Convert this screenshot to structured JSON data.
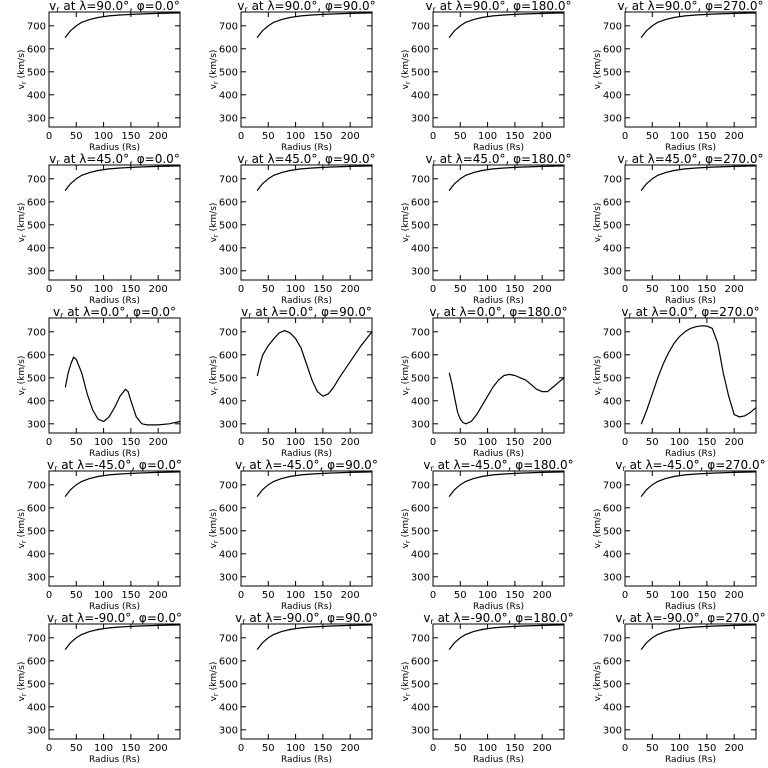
{
  "figure": {
    "xlabel": "Radius (Rs)",
    "ylabel": "v_r (km/s)",
    "ylabel_main": "v",
    "ylabel_sub": "r",
    "ylabel_rest": " (km/s)",
    "title_prefix": "v",
    "title_sub": "r",
    "title_at": " at λ=",
    "title_phi": "°, φ=",
    "title_deg": "°",
    "xticks": [
      "0",
      "50",
      "100",
      "150",
      "200"
    ],
    "yticks": [
      "300",
      "400",
      "500",
      "600",
      "700"
    ],
    "line_color": "#000000"
  },
  "chart_data": [
    {
      "type": "line",
      "title": "v_r at λ=90.0°, φ=0.0°",
      "lambda": "90.0",
      "phi": "0.0",
      "xlabel": "Radius (Rs)",
      "ylabel": "v_r (km/s)",
      "xlim": [
        0,
        240
      ],
      "ylim": [
        260,
        760
      ],
      "x": [
        30,
        40,
        50,
        60,
        75,
        90,
        110,
        130,
        160,
        200,
        240
      ],
      "y": [
        650,
        680,
        700,
        715,
        728,
        736,
        743,
        747,
        751,
        754,
        756
      ]
    },
    {
      "type": "line",
      "title": "v_r at λ=90.0°, φ=90.0°",
      "lambda": "90.0",
      "phi": "90.0",
      "xlabel": "Radius (Rs)",
      "ylabel": "v_r (km/s)",
      "xlim": [
        0,
        240
      ],
      "ylim": [
        260,
        760
      ],
      "x": [
        30,
        40,
        50,
        60,
        75,
        90,
        110,
        130,
        160,
        200,
        240
      ],
      "y": [
        650,
        680,
        700,
        715,
        728,
        736,
        743,
        747,
        751,
        754,
        756
      ]
    },
    {
      "type": "line",
      "title": "v_r at λ=90.0°, φ=180.0°",
      "lambda": "90.0",
      "phi": "180.0",
      "xlabel": "Radius (Rs)",
      "ylabel": "v_r (km/s)",
      "xlim": [
        0,
        240
      ],
      "ylim": [
        260,
        760
      ],
      "x": [
        30,
        40,
        50,
        60,
        75,
        90,
        110,
        130,
        160,
        200,
        240
      ],
      "y": [
        650,
        680,
        700,
        715,
        728,
        736,
        743,
        747,
        751,
        754,
        756
      ]
    },
    {
      "type": "line",
      "title": "v_r at λ=90.0°, φ=270.0°",
      "lambda": "90.0",
      "phi": "270.0",
      "xlabel": "Radius (Rs)",
      "ylabel": "v_r (km/s)",
      "xlim": [
        0,
        240
      ],
      "ylim": [
        260,
        760
      ],
      "x": [
        30,
        40,
        50,
        60,
        75,
        90,
        110,
        130,
        160,
        200,
        240
      ],
      "y": [
        650,
        680,
        700,
        715,
        728,
        736,
        743,
        747,
        751,
        754,
        756
      ]
    },
    {
      "type": "line",
      "title": "v_r at λ=45.0°, φ=0.0°",
      "lambda": "45.0",
      "phi": "0.0",
      "xlabel": "Radius (Rs)",
      "ylabel": "v_r (km/s)",
      "xlim": [
        0,
        240
      ],
      "ylim": [
        260,
        760
      ],
      "x": [
        30,
        40,
        50,
        60,
        75,
        90,
        110,
        130,
        160,
        200,
        240
      ],
      "y": [
        650,
        680,
        700,
        715,
        728,
        736,
        743,
        747,
        751,
        754,
        756
      ]
    },
    {
      "type": "line",
      "title": "v_r at λ=45.0°, φ=90.0°",
      "lambda": "45.0",
      "phi": "90.0",
      "xlabel": "Radius (Rs)",
      "ylabel": "v_r (km/s)",
      "xlim": [
        0,
        240
      ],
      "ylim": [
        260,
        760
      ],
      "x": [
        30,
        40,
        50,
        60,
        75,
        90,
        110,
        130,
        160,
        200,
        240
      ],
      "y": [
        650,
        680,
        700,
        715,
        728,
        736,
        743,
        747,
        751,
        754,
        756
      ]
    },
    {
      "type": "line",
      "title": "v_r at λ=45.0°, φ=180.0°",
      "lambda": "45.0",
      "phi": "180.0",
      "xlabel": "Radius (Rs)",
      "ylabel": "v_r (km/s)",
      "xlim": [
        0,
        240
      ],
      "ylim": [
        260,
        760
      ],
      "x": [
        30,
        40,
        50,
        60,
        75,
        90,
        110,
        130,
        160,
        200,
        240
      ],
      "y": [
        650,
        680,
        700,
        715,
        728,
        736,
        743,
        747,
        751,
        754,
        756
      ]
    },
    {
      "type": "line",
      "title": "v_r at λ=45.0°, φ=270.0°",
      "lambda": "45.0",
      "phi": "270.0",
      "xlabel": "Radius (Rs)",
      "ylabel": "v_r (km/s)",
      "xlim": [
        0,
        240
      ],
      "ylim": [
        260,
        760
      ],
      "x": [
        30,
        40,
        50,
        60,
        75,
        90,
        110,
        130,
        160,
        200,
        240
      ],
      "y": [
        650,
        680,
        700,
        715,
        728,
        736,
        743,
        747,
        751,
        754,
        756
      ]
    },
    {
      "type": "line",
      "title": "v_r at λ=0.0°, φ=0.0°",
      "lambda": "0.0",
      "phi": "0.0",
      "xlabel": "Radius (Rs)",
      "ylabel": "v_r (km/s)",
      "xlim": [
        0,
        240
      ],
      "ylim": [
        260,
        760
      ],
      "x": [
        30,
        35,
        40,
        45,
        50,
        60,
        70,
        80,
        90,
        100,
        110,
        120,
        130,
        140,
        145,
        150,
        160,
        170,
        180,
        200,
        220,
        240
      ],
      "y": [
        460,
        520,
        560,
        590,
        580,
        520,
        430,
        360,
        320,
        310,
        330,
        370,
        420,
        450,
        440,
        400,
        330,
        300,
        295,
        295,
        300,
        310
      ]
    },
    {
      "type": "line",
      "title": "v_r at λ=0.0°, φ=90.0°",
      "lambda": "0.0",
      "phi": "90.0",
      "xlabel": "Radius (Rs)",
      "ylabel": "v_r (km/s)",
      "xlim": [
        0,
        240
      ],
      "ylim": [
        260,
        760
      ],
      "x": [
        30,
        35,
        40,
        50,
        60,
        70,
        80,
        90,
        100,
        110,
        120,
        130,
        140,
        150,
        160,
        170,
        180,
        200,
        220,
        240
      ],
      "y": [
        510,
        560,
        600,
        640,
        670,
        695,
        705,
        695,
        670,
        630,
        560,
        490,
        440,
        420,
        430,
        460,
        500,
        570,
        640,
        700
      ]
    },
    {
      "type": "line",
      "title": "v_r at λ=0.0°, φ=180.0°",
      "lambda": "0.0",
      "phi": "180.0",
      "xlabel": "Radius (Rs)",
      "ylabel": "v_r (km/s)",
      "xlim": [
        0,
        240
      ],
      "ylim": [
        260,
        760
      ],
      "x": [
        30,
        35,
        40,
        45,
        50,
        55,
        60,
        70,
        80,
        90,
        100,
        110,
        120,
        130,
        140,
        150,
        160,
        170,
        180,
        190,
        200,
        210,
        220,
        230,
        240
      ],
      "y": [
        520,
        470,
        410,
        350,
        320,
        305,
        300,
        310,
        340,
        380,
        420,
        460,
        490,
        510,
        515,
        510,
        500,
        490,
        470,
        450,
        440,
        440,
        460,
        480,
        500
      ]
    },
    {
      "type": "line",
      "title": "v_r at λ=0.0°, φ=270.0°",
      "lambda": "0.0",
      "phi": "270.0",
      "xlabel": "Radius (Rs)",
      "ylabel": "v_r (km/s)",
      "xlim": [
        0,
        240
      ],
      "ylim": [
        260,
        760
      ],
      "x": [
        30,
        40,
        50,
        60,
        70,
        80,
        90,
        100,
        110,
        120,
        130,
        140,
        150,
        160,
        170,
        180,
        190,
        200,
        210,
        220,
        230,
        240
      ],
      "y": [
        300,
        360,
        430,
        500,
        560,
        610,
        650,
        680,
        700,
        715,
        722,
        726,
        725,
        715,
        650,
        520,
        420,
        340,
        330,
        335,
        350,
        370
      ]
    },
    {
      "type": "line",
      "title": "v_r at λ=-45.0°, φ=0.0°",
      "lambda": "-45.0",
      "phi": "0.0",
      "xlabel": "Radius (Rs)",
      "ylabel": "v_r (km/s)",
      "xlim": [
        0,
        240
      ],
      "ylim": [
        260,
        760
      ],
      "x": [
        30,
        40,
        50,
        60,
        75,
        90,
        110,
        130,
        160,
        200,
        240
      ],
      "y": [
        650,
        680,
        700,
        715,
        728,
        736,
        743,
        747,
        751,
        754,
        756
      ]
    },
    {
      "type": "line",
      "title": "v_r at λ=-45.0°, φ=90.0°",
      "lambda": "-45.0",
      "phi": "90.0",
      "xlabel": "Radius (Rs)",
      "ylabel": "v_r (km/s)",
      "xlim": [
        0,
        240
      ],
      "ylim": [
        260,
        760
      ],
      "x": [
        30,
        40,
        50,
        60,
        75,
        90,
        110,
        130,
        160,
        200,
        240
      ],
      "y": [
        650,
        680,
        700,
        715,
        728,
        736,
        743,
        747,
        751,
        754,
        756
      ]
    },
    {
      "type": "line",
      "title": "v_r at λ=-45.0°, φ=180.0°",
      "lambda": "-45.0",
      "phi": "180.0",
      "xlabel": "Radius (Rs)",
      "ylabel": "v_r (km/s)",
      "xlim": [
        0,
        240
      ],
      "ylim": [
        260,
        760
      ],
      "x": [
        30,
        40,
        50,
        60,
        75,
        90,
        110,
        130,
        160,
        200,
        240
      ],
      "y": [
        650,
        680,
        700,
        715,
        728,
        736,
        743,
        747,
        751,
        754,
        756
      ]
    },
    {
      "type": "line",
      "title": "v_r at λ=-45.0°, φ=270.0°",
      "lambda": "-45.0",
      "phi": "270.0",
      "xlabel": "Radius (Rs)",
      "ylabel": "v_r (km/s)",
      "xlim": [
        0,
        240
      ],
      "ylim": [
        260,
        760
      ],
      "x": [
        30,
        40,
        50,
        60,
        75,
        90,
        110,
        130,
        160,
        200,
        240
      ],
      "y": [
        650,
        680,
        700,
        715,
        728,
        736,
        743,
        747,
        751,
        754,
        756
      ]
    },
    {
      "type": "line",
      "title": "v_r at λ=-90.0°, φ=0.0°",
      "lambda": "-90.0",
      "phi": "0.0",
      "xlabel": "Radius (Rs)",
      "ylabel": "v_r (km/s)",
      "xlim": [
        0,
        240
      ],
      "ylim": [
        260,
        760
      ],
      "x": [
        30,
        40,
        50,
        60,
        75,
        90,
        110,
        130,
        160,
        200,
        240
      ],
      "y": [
        650,
        680,
        700,
        715,
        728,
        736,
        743,
        747,
        751,
        754,
        756
      ]
    },
    {
      "type": "line",
      "title": "v_r at λ=-90.0°, φ=90.0°",
      "lambda": "-90.0",
      "phi": "90.0",
      "xlabel": "Radius (Rs)",
      "ylabel": "v_r (km/s)",
      "xlim": [
        0,
        240
      ],
      "ylim": [
        260,
        760
      ],
      "x": [
        30,
        40,
        50,
        60,
        75,
        90,
        110,
        130,
        160,
        200,
        240
      ],
      "y": [
        650,
        680,
        700,
        715,
        728,
        736,
        743,
        747,
        751,
        754,
        756
      ]
    },
    {
      "type": "line",
      "title": "v_r at λ=-90.0°, φ=180.0°",
      "lambda": "-90.0",
      "phi": "180.0",
      "xlabel": "Radius (Rs)",
      "ylabel": "v_r (km/s)",
      "xlim": [
        0,
        240
      ],
      "ylim": [
        260,
        760
      ],
      "x": [
        30,
        40,
        50,
        60,
        75,
        90,
        110,
        130,
        160,
        200,
        240
      ],
      "y": [
        650,
        680,
        700,
        715,
        728,
        736,
        743,
        747,
        751,
        754,
        756
      ]
    },
    {
      "type": "line",
      "title": "v_r at λ=-90.0°, φ=270.0°",
      "lambda": "-90.0",
      "phi": "270.0",
      "xlabel": "Radius (Rs)",
      "ylabel": "v_r (km/s)",
      "xlim": [
        0,
        240
      ],
      "ylim": [
        260,
        760
      ],
      "x": [
        30,
        40,
        50,
        60,
        75,
        90,
        110,
        130,
        160,
        200,
        240
      ],
      "y": [
        650,
        680,
        700,
        715,
        728,
        736,
        743,
        747,
        751,
        754,
        756
      ]
    }
  ]
}
